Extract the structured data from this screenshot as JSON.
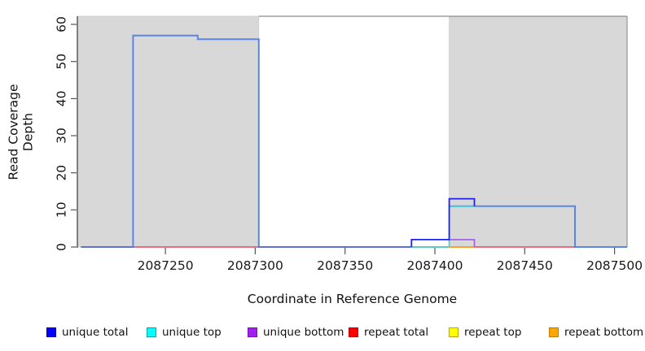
{
  "page": {
    "background": "#FFFFFF"
  },
  "chart_data": {
    "type": "line",
    "subtype": "step-coverage",
    "title": "",
    "xlabel": "Coordinate in Reference Genome",
    "ylabel": "Read Coverage Depth",
    "x_range": [
      2087201,
      2087507
    ],
    "y_range": [
      0,
      62.2
    ],
    "x_ticks": [
      2087250,
      2087300,
      2087350,
      2087400,
      2087450,
      2087500
    ],
    "y_ticks": [
      0,
      10,
      20,
      30,
      40,
      50,
      60
    ],
    "grid": false,
    "legend_position": "bottom",
    "shaded_regions": [
      {
        "name": "left-gray-region",
        "x0": 2087201,
        "x1": 2087302,
        "color": "#D8D8D8"
      },
      {
        "name": "right-gray-region",
        "x0": 2087408,
        "x1": 2087507,
        "color": "#D8D8D8"
      }
    ],
    "series": [
      {
        "name": "repeat total baseline",
        "color": "#E6455F",
        "width": 1.5,
        "opacity": 1,
        "points": [
          [
            2087203,
            0
          ],
          [
            2087478,
            0
          ]
        ]
      },
      {
        "name": "unique total left block",
        "color": "#3D74E8",
        "width": 2,
        "opacity": 0.82,
        "points": [
          [
            2087203,
            0
          ],
          [
            2087232,
            0
          ],
          [
            2087232,
            57
          ],
          [
            2087268,
            57
          ],
          [
            2087268,
            56
          ],
          [
            2087302,
            56
          ],
          [
            2087302,
            0
          ],
          [
            2087387,
            0
          ]
        ]
      },
      {
        "name": "unique total right block",
        "color": "#3D74E8",
        "width": 2,
        "opacity": 0.82,
        "points": [
          [
            2087408,
            11
          ],
          [
            2087478,
            11
          ],
          [
            2087478,
            0
          ],
          [
            2087507,
            0
          ]
        ]
      },
      {
        "name": "unique top",
        "color": "#2BD8CF",
        "width": 1.6,
        "opacity": 1,
        "points": [
          [
            2087387,
            0
          ],
          [
            2087408,
            0
          ],
          [
            2087408,
            11
          ],
          [
            2087422,
            11
          ]
        ]
      },
      {
        "name": "repeat bottom",
        "color": "#FF9F2E",
        "width": 2,
        "opacity": 1,
        "points": [
          [
            2087408,
            0
          ],
          [
            2087422,
            0
          ]
        ]
      },
      {
        "name": "unique bottom",
        "color": "#A45BE8",
        "width": 1.6,
        "opacity": 1,
        "points": [
          [
            2087408,
            2
          ],
          [
            2087422,
            2
          ],
          [
            2087422,
            0
          ]
        ]
      },
      {
        "name": "unique total peak",
        "color": "#2020EE",
        "width": 1.8,
        "opacity": 1,
        "points": [
          [
            2087387,
            0
          ],
          [
            2087387,
            2
          ],
          [
            2087408,
            2
          ],
          [
            2087408,
            13
          ],
          [
            2087422,
            13
          ],
          [
            2087422,
            11
          ]
        ]
      }
    ],
    "legend": {
      "items": [
        {
          "label": "unique total",
          "fill": "#0000FF",
          "border": "#0000B0"
        },
        {
          "label": "unique top",
          "fill": "#00FFFF",
          "border": "#00A6A6"
        },
        {
          "label": "unique bottom",
          "fill": "#A020F0",
          "border": "#7A0FB8"
        },
        {
          "label": "repeat total",
          "fill": "#FF0000",
          "border": "#B80000"
        },
        {
          "label": "repeat top",
          "fill": "#FFFF00",
          "border": "#BFA300"
        },
        {
          "label": "repeat bottom",
          "fill": "#FFA500",
          "border": "#C37A00"
        }
      ]
    }
  }
}
